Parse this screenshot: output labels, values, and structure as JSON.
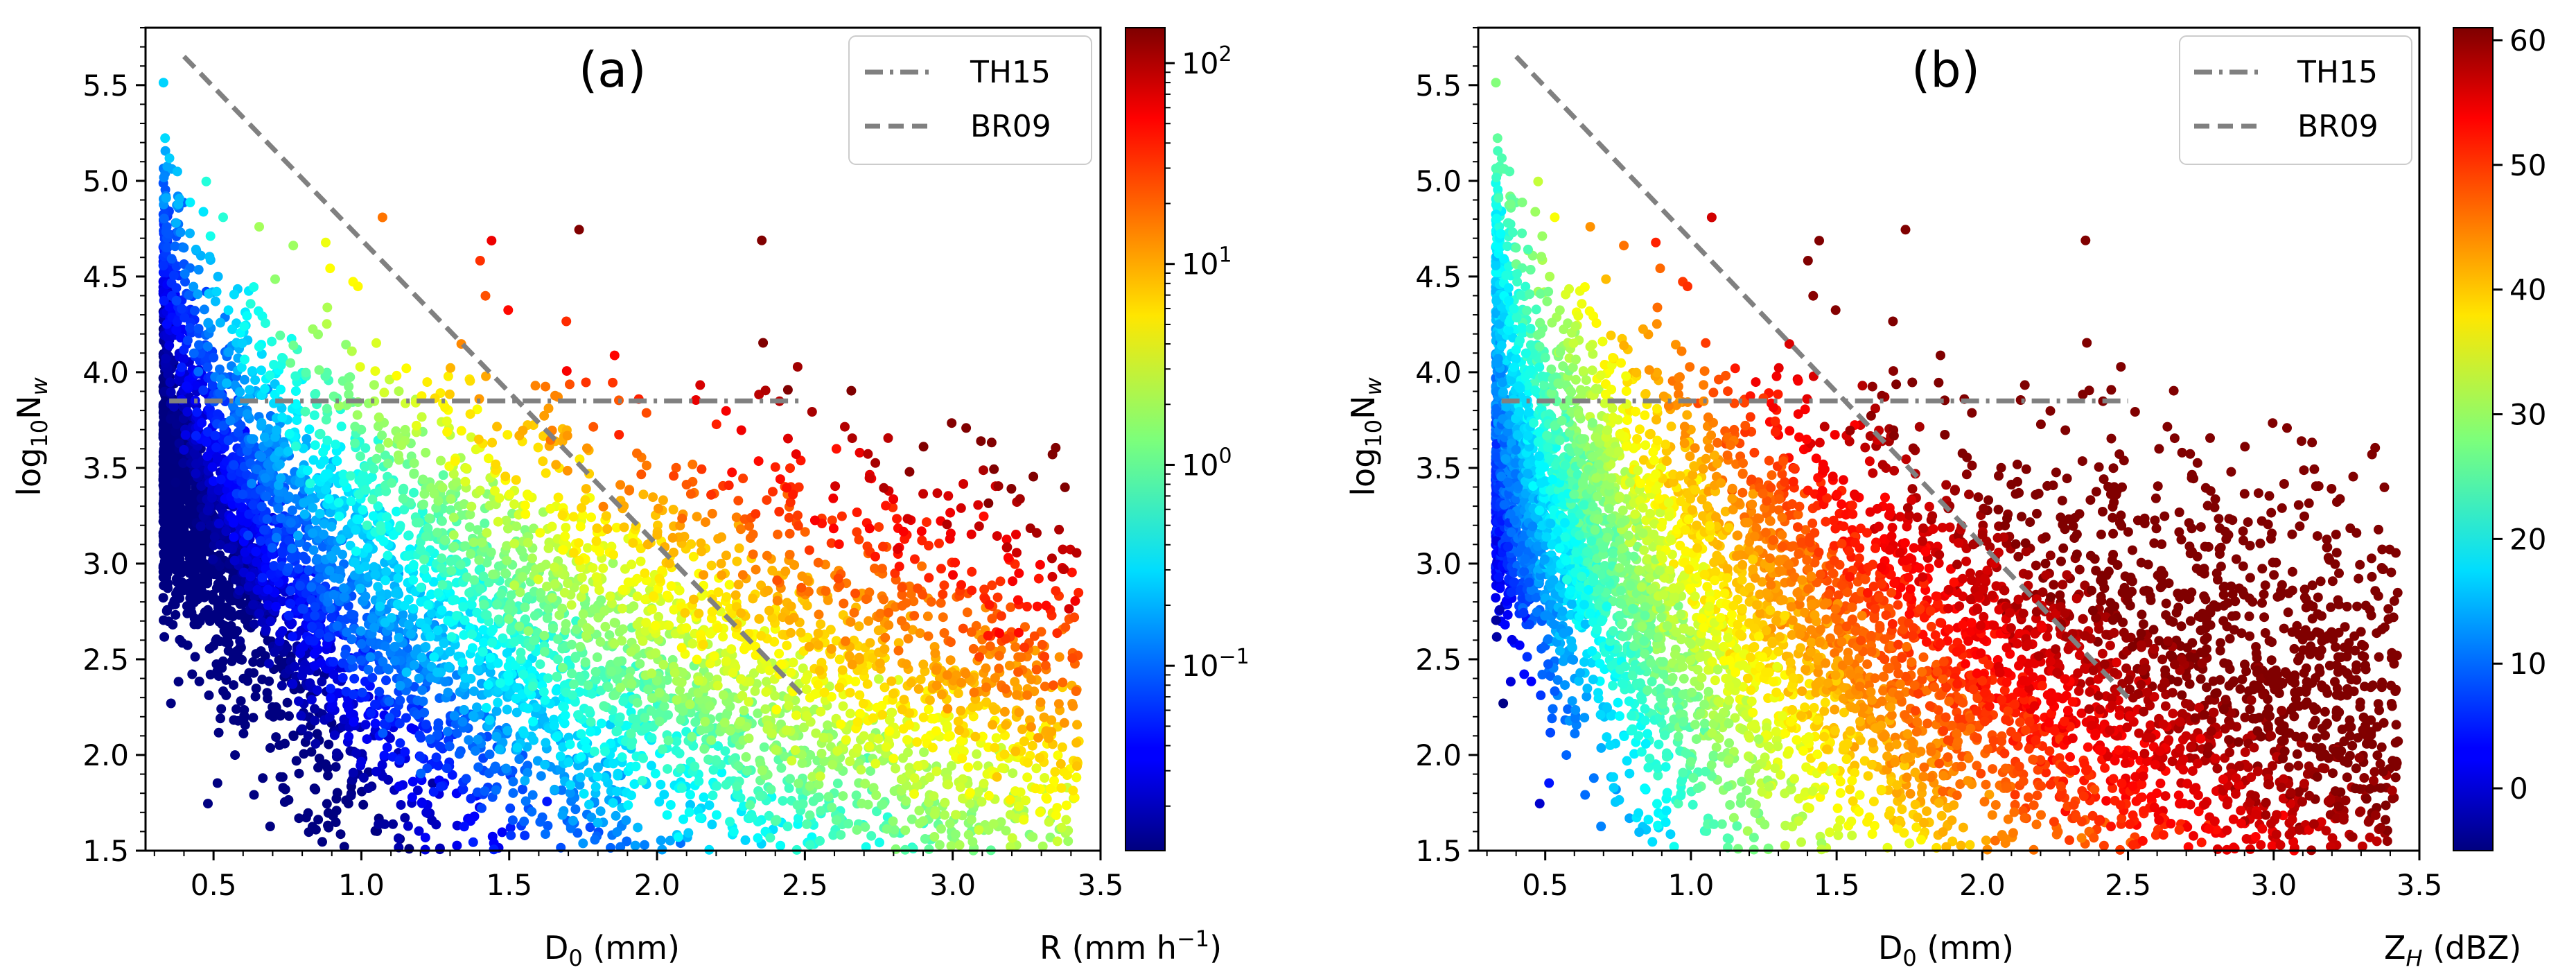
{
  "chart_data": [
    {
      "type": "scatter",
      "panel_label": "(a)",
      "xlabel": "D$_0$ (mm)",
      "ylabel": "log$_{10}$N$_w$",
      "xlim": [
        0.27,
        3.5
      ],
      "ylim": [
        1.5,
        5.8
      ],
      "x_ticks": [
        "0.5",
        "1.0",
        "1.5",
        "2.0",
        "2.5",
        "3.0",
        "3.5"
      ],
      "y_ticks": [
        "1.5",
        "2.0",
        "2.5",
        "3.0",
        "3.5",
        "4.0",
        "4.5",
        "5.0",
        "5.5"
      ],
      "colorbar": {
        "label": "R (mm h$^{-1}$)",
        "scale": "log",
        "range": [
          0.012,
          150
        ],
        "ticks": [
          "10$^{-1}$",
          "10$^{0}$",
          "10$^{1}$",
          "10$^{2}$"
        ]
      },
      "legend": {
        "position": "top-right",
        "entries": [
          {
            "label": "TH15",
            "style": "dash-dot",
            "color": "#808080"
          },
          {
            "label": "BR09",
            "style": "dashed",
            "color": "#808080"
          }
        ]
      },
      "lines": [
        {
          "name": "TH15",
          "x": [
            0.35,
            2.5
          ],
          "y": [
            3.85,
            3.85
          ]
        },
        {
          "name": "BR09",
          "x": [
            0.4,
            2.5
          ],
          "y": [
            5.65,
            2.3
          ]
        }
      ],
      "color_variable": "rain_rate",
      "n_points": 6500
    },
    {
      "type": "scatter",
      "panel_label": "(b)",
      "xlabel": "D$_0$ (mm)",
      "ylabel": "log$_{10}$N$_w$",
      "xlim": [
        0.27,
        3.5
      ],
      "ylim": [
        1.5,
        5.8
      ],
      "x_ticks": [
        "0.5",
        "1.0",
        "1.5",
        "2.0",
        "2.5",
        "3.0",
        "3.5"
      ],
      "y_ticks": [
        "1.5",
        "2.0",
        "2.5",
        "3.0",
        "3.5",
        "4.0",
        "4.5",
        "5.0",
        "5.5"
      ],
      "colorbar": {
        "label": "Z$_H$ (dBZ)",
        "scale": "linear",
        "range": [
          -5,
          61
        ],
        "ticks": [
          "0",
          "10",
          "20",
          "30",
          "40",
          "50",
          "60"
        ]
      },
      "legend": {
        "position": "top-right",
        "entries": [
          {
            "label": "TH15",
            "style": "dash-dot",
            "color": "#808080"
          },
          {
            "label": "BR09",
            "style": "dashed",
            "color": "#808080"
          }
        ]
      },
      "lines": [
        {
          "name": "TH15",
          "x": [
            0.35,
            2.5
          ],
          "y": [
            3.85,
            3.85
          ]
        },
        {
          "name": "BR09",
          "x": [
            0.4,
            2.5
          ],
          "y": [
            5.65,
            2.3
          ]
        }
      ],
      "color_variable": "reflectivity",
      "n_points": 6500
    }
  ]
}
